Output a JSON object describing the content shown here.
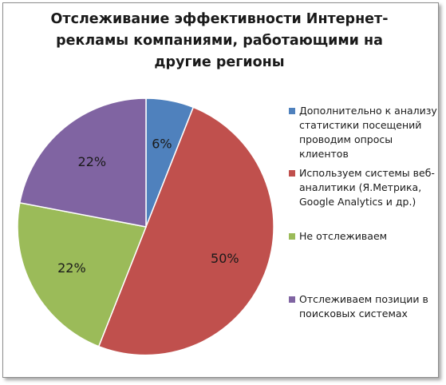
{
  "chart_data": {
    "type": "pie",
    "title_lines": [
      "Отслеживание эффективности Интернет-",
      "рекламы компаниями, работающими на",
      "другие регионы"
    ],
    "slices": [
      {
        "label_lines": [
          "Дополнительно к анализу",
          "статистики посещений",
          "проводим опросы",
          "клиентов"
        ],
        "value": 6,
        "display": "6%",
        "color": "#4f81bd"
      },
      {
        "label_lines": [
          "Используем системы веб-",
          "аналитики (Я.Метрика,",
          "Google Analytics и др.)"
        ],
        "value": 50,
        "display": "50%",
        "color": "#c0504d"
      },
      {
        "label_lines": [
          "Не отслеживаем"
        ],
        "value": 22,
        "display": "22%",
        "color": "#9bbb59"
      },
      {
        "label_lines": [
          "Отслеживаем позиции в",
          "поисковых системах"
        ],
        "value": 22,
        "display": "22%",
        "color": "#8064a2"
      }
    ],
    "legend_position": "right"
  }
}
